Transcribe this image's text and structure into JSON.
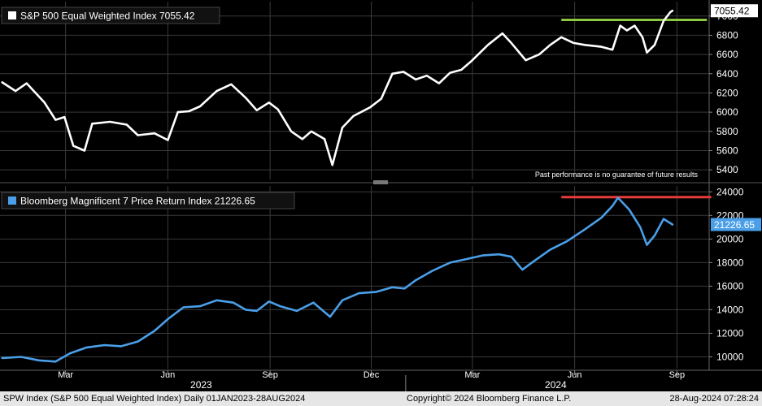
{
  "chart_data": [
    {
      "type": "line",
      "title": "S&P 500 Equal Weighted Index 7055.42",
      "legend_placement": "top-left",
      "last_value_label": "7055.42",
      "ylim": [
        5300,
        7150
      ],
      "y_ticks": [
        5400,
        5600,
        5800,
        6000,
        6200,
        6400,
        6600,
        6800,
        7000
      ],
      "grid": true,
      "line_color": "#ffffff",
      "annotation": "Past performance is no guarantee of future results",
      "reference_line": {
        "y": 6960,
        "x_start": "2024-05-20",
        "x_end": "2024-09-28",
        "color": "#8dc63f"
      },
      "series": [
        {
          "values": [
            [
              "2023-01-03",
              6310
            ],
            [
              "2023-01-15",
              6220
            ],
            [
              "2023-01-25",
              6300
            ],
            [
              "2023-02-10",
              6100
            ],
            [
              "2023-02-20",
              5920
            ],
            [
              "2023-02-28",
              5950
            ],
            [
              "2023-03-08",
              5650
            ],
            [
              "2023-03-18",
              5600
            ],
            [
              "2023-03-25",
              5880
            ],
            [
              "2023-04-10",
              5900
            ],
            [
              "2023-04-25",
              5870
            ],
            [
              "2023-05-05",
              5760
            ],
            [
              "2023-05-20",
              5780
            ],
            [
              "2023-06-01",
              5710
            ],
            [
              "2023-06-10",
              6000
            ],
            [
              "2023-06-20",
              6010
            ],
            [
              "2023-06-30",
              6060
            ],
            [
              "2023-07-15",
              6220
            ],
            [
              "2023-07-28",
              6290
            ],
            [
              "2023-08-10",
              6150
            ],
            [
              "2023-08-20",
              6020
            ],
            [
              "2023-08-31",
              6100
            ],
            [
              "2023-09-08",
              6030
            ],
            [
              "2023-09-20",
              5800
            ],
            [
              "2023-09-30",
              5720
            ],
            [
              "2023-10-08",
              5800
            ],
            [
              "2023-10-20",
              5720
            ],
            [
              "2023-10-27",
              5450
            ],
            [
              "2023-11-05",
              5840
            ],
            [
              "2023-11-15",
              5960
            ],
            [
              "2023-11-30",
              6050
            ],
            [
              "2023-12-10",
              6140
            ],
            [
              "2023-12-20",
              6400
            ],
            [
              "2023-12-30",
              6420
            ],
            [
              "2024-01-10",
              6340
            ],
            [
              "2024-01-20",
              6380
            ],
            [
              "2024-01-31",
              6300
            ],
            [
              "2024-02-10",
              6410
            ],
            [
              "2024-02-20",
              6440
            ],
            [
              "2024-02-29",
              6530
            ],
            [
              "2024-03-15",
              6700
            ],
            [
              "2024-03-28",
              6820
            ],
            [
              "2024-04-05",
              6720
            ],
            [
              "2024-04-18",
              6540
            ],
            [
              "2024-04-30",
              6600
            ],
            [
              "2024-05-10",
              6700
            ],
            [
              "2024-05-20",
              6780
            ],
            [
              "2024-05-31",
              6720
            ],
            [
              "2024-06-10",
              6700
            ],
            [
              "2024-06-25",
              6680
            ],
            [
              "2024-07-05",
              6650
            ],
            [
              "2024-07-12",
              6900
            ],
            [
              "2024-07-18",
              6850
            ],
            [
              "2024-07-25",
              6900
            ],
            [
              "2024-08-01",
              6780
            ],
            [
              "2024-08-05",
              6620
            ],
            [
              "2024-08-12",
              6700
            ],
            [
              "2024-08-20",
              6950
            ],
            [
              "2024-08-26",
              7040
            ],
            [
              "2024-08-28",
              7055
            ]
          ]
        }
      ]
    },
    {
      "type": "line",
      "title": "Bloomberg Magnificent 7 Price Return Index 21226.65",
      "legend_placement": "top-left",
      "legend_color": "#4a9fe8",
      "last_value_label": "21226.65",
      "ylim": [
        9000,
        24500
      ],
      "y_ticks": [
        10000,
        12000,
        14000,
        16000,
        18000,
        20000,
        22000,
        24000
      ],
      "grid": true,
      "line_color": "#4a9fe8",
      "reference_line": {
        "y": 23550,
        "x_start": "2024-05-20",
        "x_end": "2024-10-02",
        "color": "#e83b3b"
      },
      "series": [
        {
          "values": [
            [
              "2023-01-03",
              9900
            ],
            [
              "2023-01-20",
              10000
            ],
            [
              "2023-02-05",
              9700
            ],
            [
              "2023-02-20",
              9600
            ],
            [
              "2023-03-05",
              10300
            ],
            [
              "2023-03-20",
              10800
            ],
            [
              "2023-04-05",
              11000
            ],
            [
              "2023-04-20",
              10900
            ],
            [
              "2023-05-05",
              11300
            ],
            [
              "2023-05-20",
              12200
            ],
            [
              "2023-06-01",
              13200
            ],
            [
              "2023-06-15",
              14200
            ],
            [
              "2023-06-30",
              14300
            ],
            [
              "2023-07-15",
              14800
            ],
            [
              "2023-07-30",
              14600
            ],
            [
              "2023-08-10",
              14000
            ],
            [
              "2023-08-20",
              13900
            ],
            [
              "2023-08-31",
              14700
            ],
            [
              "2023-09-10",
              14300
            ],
            [
              "2023-09-25",
              13900
            ],
            [
              "2023-10-10",
              14600
            ],
            [
              "2023-10-25",
              13400
            ],
            [
              "2023-11-05",
              14800
            ],
            [
              "2023-11-20",
              15400
            ],
            [
              "2023-12-05",
              15500
            ],
            [
              "2023-12-20",
              15900
            ],
            [
              "2023-12-31",
              15800
            ],
            [
              "2024-01-10",
              16500
            ],
            [
              "2024-01-25",
              17300
            ],
            [
              "2024-02-10",
              18000
            ],
            [
              "2024-02-25",
              18300
            ],
            [
              "2024-03-10",
              18600
            ],
            [
              "2024-03-25",
              18700
            ],
            [
              "2024-04-05",
              18500
            ],
            [
              "2024-04-15",
              17400
            ],
            [
              "2024-04-25",
              18100
            ],
            [
              "2024-05-10",
              19100
            ],
            [
              "2024-05-25",
              19800
            ],
            [
              "2024-06-10",
              20800
            ],
            [
              "2024-06-25",
              21800
            ],
            [
              "2024-07-05",
              22800
            ],
            [
              "2024-07-10",
              23500
            ],
            [
              "2024-07-20",
              22500
            ],
            [
              "2024-07-30",
              21000
            ],
            [
              "2024-08-05",
              19500
            ],
            [
              "2024-08-12",
              20300
            ],
            [
              "2024-08-20",
              21700
            ],
            [
              "2024-08-28",
              21226
            ]
          ]
        }
      ]
    }
  ],
  "x_axis": {
    "start": "2023-01-01",
    "end": "2024-09-30",
    "month_ticks": [
      {
        "date": "2023-03-01",
        "label": "Mar"
      },
      {
        "date": "2023-06-01",
        "label": "Jun"
      },
      {
        "date": "2023-09-01",
        "label": "Sep"
      },
      {
        "date": "2023-12-01",
        "label": "Dec"
      },
      {
        "date": "2024-03-01",
        "label": "Mar"
      },
      {
        "date": "2024-06-01",
        "label": "Jun"
      },
      {
        "date": "2024-09-01",
        "label": "Sep"
      }
    ],
    "year_labels": [
      {
        "date": "2023-07-01",
        "label": "2023"
      },
      {
        "date": "2024-05-15",
        "label": "2024"
      }
    ]
  },
  "footer": {
    "left": "SPW Index (S&P 500 Equal Weighted Index)  Daily 01JAN2023-28AUG2024",
    "center": "Copyright© 2024 Bloomberg Finance L.P.",
    "right": "28-Aug-2024 07:28:24"
  }
}
